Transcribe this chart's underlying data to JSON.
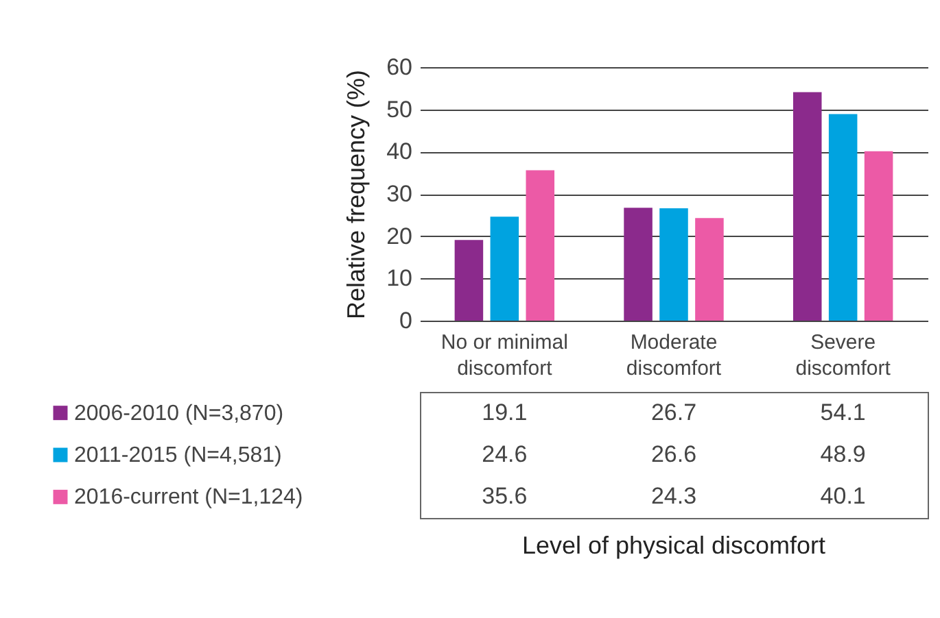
{
  "chart_data": {
    "type": "bar",
    "ylabel": "Relative frequency (%)",
    "annotations": [
      "Level of physical discomfort"
    ],
    "categories": [
      "No or minimal discomfort",
      "Moderate discomfort",
      "Severe discomfort"
    ],
    "series": [
      {
        "name": "2006-2010 (N=3,870)",
        "color": "#8b2a8c",
        "values": [
          19.1,
          26.7,
          54.1
        ]
      },
      {
        "name": "2011-2015 (N=4,581)",
        "color": "#00a3e0",
        "values": [
          24.6,
          26.6,
          48.9
        ]
      },
      {
        "name": "2016-current (N=1,124)",
        "color": "#ec5aa6",
        "values": [
          35.6,
          24.3,
          40.1
        ]
      }
    ],
    "ylim": [
      0,
      60
    ],
    "yticks": [
      0,
      10,
      20,
      30,
      40,
      50,
      60
    ],
    "grid": "y",
    "legend": "bottom",
    "data_labels": true
  }
}
